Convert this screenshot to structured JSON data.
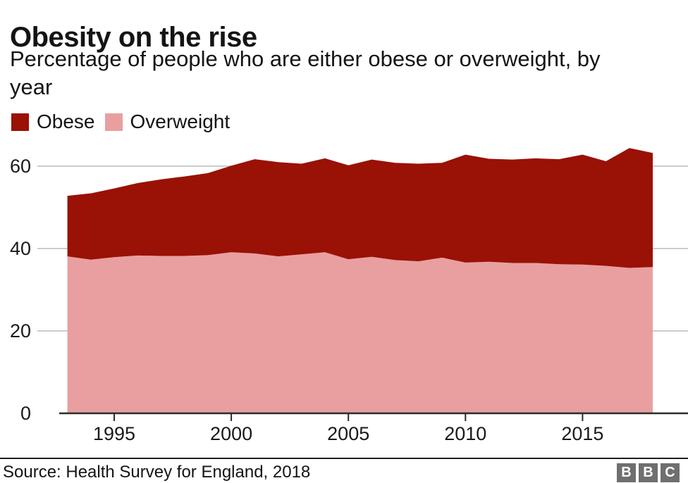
{
  "header": {
    "title": "Obesity on the rise",
    "subtitle": "Percentage of people who are either obese or overweight, by year"
  },
  "legend": [
    {
      "label": "Obese",
      "color": "#9a1106"
    },
    {
      "label": "Overweight",
      "color": "#e99fa0"
    }
  ],
  "chart_data": {
    "type": "area",
    "stacked": true,
    "title": "Obesity on the rise",
    "subtitle": "Percentage of people who are either obese or overweight, by year",
    "xlabel": "",
    "ylabel": "",
    "grid": true,
    "legend_position": "top-left",
    "xlim": [
      1993,
      2018
    ],
    "ylim": [
      0,
      66
    ],
    "x_ticks": [
      1995,
      2000,
      2005,
      2010,
      2015
    ],
    "y_ticks": [
      0,
      20,
      40,
      60
    ],
    "x": [
      1993,
      1994,
      1995,
      1996,
      1997,
      1998,
      1999,
      2000,
      2001,
      2002,
      2003,
      2004,
      2005,
      2006,
      2007,
      2008,
      2009,
      2010,
      2011,
      2012,
      2013,
      2014,
      2015,
      2016,
      2017,
      2018
    ],
    "series": [
      {
        "name": "Overweight",
        "color": "#e99fa0",
        "values": [
          38.1,
          37.3,
          37.9,
          38.3,
          38.2,
          38.2,
          38.4,
          39.1,
          38.8,
          38.1,
          38.6,
          39.1,
          37.4,
          38.0,
          37.2,
          36.9,
          37.8,
          36.6,
          36.8,
          36.5,
          36.5,
          36.2,
          36.1,
          35.8,
          35.3,
          35.5
        ]
      },
      {
        "name": "Obese",
        "color": "#9a1106",
        "values": [
          14.7,
          16.1,
          16.7,
          17.6,
          18.6,
          19.3,
          19.9,
          21.0,
          22.9,
          22.9,
          22.0,
          22.8,
          22.8,
          23.6,
          23.6,
          23.7,
          23.0,
          26.2,
          25.0,
          25.1,
          25.4,
          25.5,
          26.7,
          25.4,
          29.1,
          27.7
        ]
      }
    ]
  },
  "footer": {
    "source": "Source: Health Survey for England, 2018",
    "logo_letters": [
      "B",
      "B",
      "C"
    ]
  }
}
